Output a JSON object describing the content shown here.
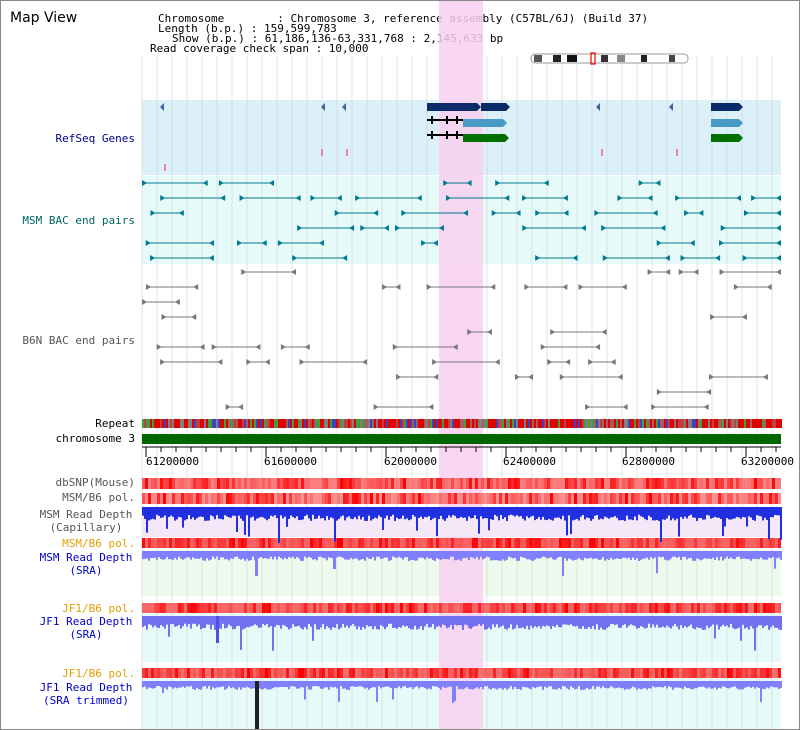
{
  "header": {
    "title": "Map View",
    "chromosome_line": "Chromosome        : Chromosome 3, reference assembly (C57BL/6J) (Build 37)",
    "length_line": "Length (b.p.) : 159,599,783",
    "show_line": "Show (b.p.) : 61,186,136-63,331,768 : 2,145,633 bp",
    "coverage_line": "Read coverage check span : 10,000"
  },
  "tracks": {
    "refseq": "RefSeq Genes",
    "msm_bac": "MSM BAC end pairs",
    "b6n_bac": "B6N BAC end pairs",
    "repeat": "Repeat",
    "chromosome": "chromosome 3",
    "dbsnp": "dbSNP(Mouse)",
    "msm_b6_pol_1": "MSM/B6 pol.",
    "msm_depth_cap_1": "MSM Read Depth",
    "msm_depth_cap_2": "(Capillary)",
    "msm_b6_pol_2": "MSM/B6 pol.",
    "msm_depth_sra_1": "MSM Read Depth",
    "msm_depth_sra_2": "(SRA)",
    "jf1_b6_pol_1": "JF1/B6 pol.",
    "jf1_depth_sra_1": "JF1 Read Depth",
    "jf1_depth_sra_2": "(SRA)",
    "jf1_b6_pol_2": "JF1/B6 pol.",
    "jf1_depth_trim_1": "JF1 Read Depth",
    "jf1_depth_trim_2": "(SRA trimmed)"
  },
  "axis": {
    "ticks": [
      "61200000",
      "61600000",
      "62000000",
      "62400000",
      "62800000",
      "63200000"
    ]
  },
  "colors": {
    "refseq_bg": "#dcf0fa",
    "bac_bg": "#e6fafa",
    "highlight": "#f8d0f0",
    "chromosome_bar": "#006600",
    "depth_blue": "#2030e0",
    "depth_light_blue": "#8080ff"
  }
}
